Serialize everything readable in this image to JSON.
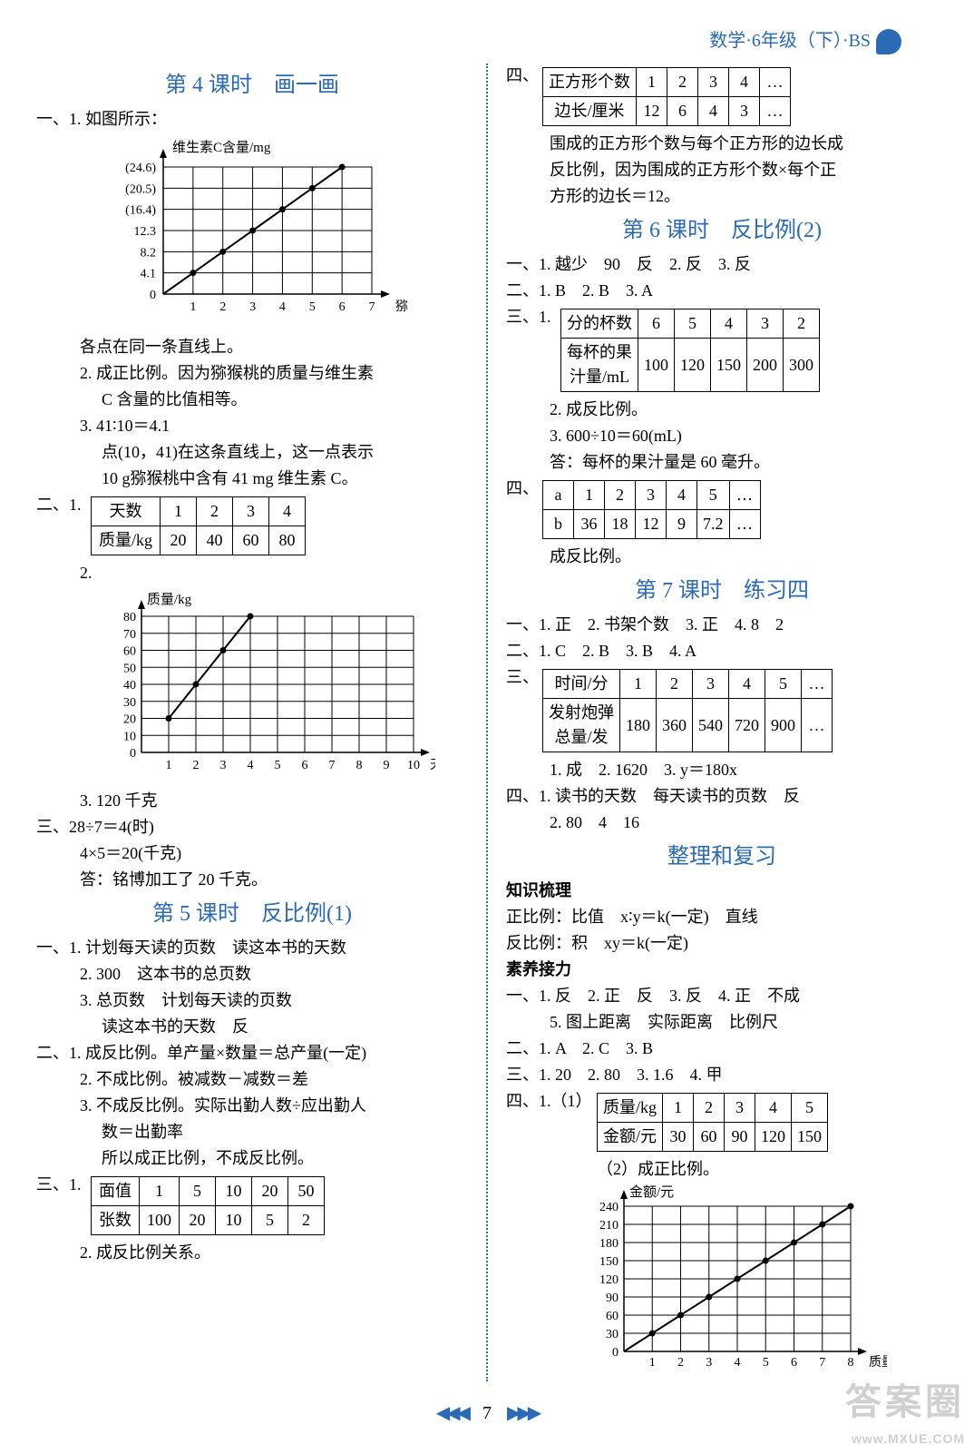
{
  "header": "数学·6年级（下）·BS",
  "page_number": "7",
  "left": {
    "lesson4_title": "第 4 课时　画一画",
    "l1": "一、1. 如图所示：",
    "chart1": {
      "type": "line",
      "title": "维生素C含量/mg",
      "x_label": "猕猴桃质量/g",
      "x_ticks": [
        1,
        2,
        3,
        4,
        5,
        6,
        7
      ],
      "y_ticks_labels": [
        "(24.6)",
        "(20.5)",
        "(16.4)",
        "12.3",
        "8.2",
        "4.1",
        "0"
      ],
      "y_values": [
        4.1,
        8.2,
        12.3,
        16.4,
        20.5,
        24.6
      ],
      "grid_color": "#000",
      "line_color": "#000",
      "bg": "#ffffff",
      "font_size": 14
    },
    "l2": "各点在同一条直线上。",
    "l3": "2. 成正比例。因为猕猴桃的质量与维生素",
    "l3b": "C 含量的比值相等。",
    "l4": "3. 41∶10＝4.1",
    "l4b": "点(10，41)在这条直线上，这一点表示",
    "l4c": "10 g猕猴桃中含有 41 mg 维生素 C。",
    "two_1_label": "二、1.",
    "table_days": {
      "headers": [
        "天数",
        "1",
        "2",
        "3",
        "4"
      ],
      "row2": [
        "质量/kg",
        "20",
        "40",
        "60",
        "80"
      ]
    },
    "two_2": "2.",
    "chart2": {
      "type": "line",
      "title": "质量/kg",
      "x_label": "天数",
      "x_ticks": [
        1,
        2,
        3,
        4,
        5,
        6,
        7,
        8,
        9,
        10
      ],
      "y_ticks": [
        10,
        20,
        30,
        40,
        50,
        60,
        70,
        80
      ],
      "points_x": [
        1,
        2,
        3,
        4
      ],
      "points_y": [
        20,
        40,
        60,
        80
      ],
      "grid_color": "#000",
      "line_color": "#000",
      "bg": "#ffffff",
      "font_size": 14
    },
    "two_3": "3. 120 千克",
    "three_a": "三、28÷7＝4(时)",
    "three_b": "4×5＝20(千克)",
    "three_c": "答：铭博加工了 20 千克。",
    "lesson5_title": "第 5 课时　反比例(1)",
    "f1": "一、1. 计划每天读的页数　读这本书的天数",
    "f2": "2. 300　这本书的总页数",
    "f3": "3. 总页数　计划每天读的页数",
    "f3b": "读这本书的天数　反",
    "g1": "二、1. 成反比例。单产量×数量＝总产量(一定)",
    "g2": "2. 不成比例。被减数－减数＝差",
    "g3": "3. 不成反比例。实际出勤人数÷应出勤人",
    "g3b": "数＝出勤率",
    "g3c": "所以成正比例，不成反比例。",
    "h_label": "三、1.",
    "table_money": {
      "headers": [
        "面值",
        "1",
        "5",
        "10",
        "20",
        "50"
      ],
      "row2": [
        "张数",
        "100",
        "20",
        "10",
        "5",
        "2"
      ]
    },
    "h2": "2. 成反比例关系。"
  },
  "right": {
    "four_label": "四、",
    "table_squares": {
      "headers": [
        "正方形个数",
        "1",
        "2",
        "3",
        "4",
        "…"
      ],
      "row2": [
        "边长/厘米",
        "12",
        "6",
        "4",
        "3",
        "…"
      ]
    },
    "r1": "围成的正方形个数与每个正方形的边长成",
    "r1b": "反比例，因为围成的正方形个数×每个正",
    "r1c": "方形的边长＝12。",
    "lesson6_title": "第 6 课时　反比例(2)",
    "a1": "一、1. 越少　90　反　2. 反　3. 反",
    "a2": "二、1. B　2. B　3. A",
    "a3_label": "三、1.",
    "table_cups": {
      "headers": [
        "分的杯数",
        "6",
        "5",
        "4",
        "3",
        "2"
      ],
      "row2": [
        "每杯的果\n汁量/mL",
        "100",
        "120",
        "150",
        "200",
        "300"
      ]
    },
    "a4": "2. 成反比例。",
    "a5": "3. 600÷10＝60(mL)",
    "a6": "答：每杯的果汁量是 60 毫升。",
    "b_label": "四、",
    "table_ab": {
      "headers": [
        "a",
        "1",
        "2",
        "3",
        "4",
        "5",
        "…"
      ],
      "row2": [
        "b",
        "36",
        "18",
        "12",
        "9",
        "7.2",
        "…"
      ]
    },
    "b1": "成反比例。",
    "lesson7_title": "第 7 课时　练习四",
    "c1": "一、1. 正　2. 书架个数　3. 正　4. 8　2",
    "c2": "二、1. C　2. B　3. B　4. A",
    "c3_label": "三、",
    "table_time": {
      "headers": [
        "时间/分",
        "1",
        "2",
        "3",
        "4",
        "5",
        "…"
      ],
      "row2": [
        "发射炮弹\n总量/发",
        "180",
        "360",
        "540",
        "720",
        "900",
        "…"
      ]
    },
    "c4": "1. 成　2. 1620　3. y＝180x",
    "c5": "四、1. 读书的天数　每天读书的页数　反",
    "c6": "2. 80　4　16",
    "review_title": "整理和复习",
    "k_title": "知识梳理",
    "k1": "正比例：比值　x∶y＝k(一定)　直线",
    "k2": "反比例：积　xy＝k(一定)",
    "s_title": "素养接力",
    "s1": "一、1. 反　2. 正　反　3. 反　4. 正　不成",
    "s1b": "5. 图上距离　实际距离　比例尺",
    "s2": "二、1. A　2. C　3. B",
    "s3": "三、1. 20　2. 80　3. 1.6　4. 甲",
    "s4_label": "四、1.（1）",
    "table_mass": {
      "headers": [
        "质量/kg",
        "1",
        "2",
        "3",
        "4",
        "5"
      ],
      "row2": [
        "金额/元",
        "30",
        "60",
        "90",
        "120",
        "150"
      ]
    },
    "s5": "（2）成正比例。",
    "chart3": {
      "type": "line",
      "title": "金额/元",
      "x_label": "质量/kg",
      "x_ticks": [
        1,
        2,
        3,
        4,
        5,
        6,
        7,
        8
      ],
      "y_ticks": [
        30,
        60,
        90,
        120,
        150,
        180,
        210,
        240
      ],
      "points_x": [
        1,
        2,
        3,
        4,
        5,
        6,
        7,
        8
      ],
      "points_y": [
        30,
        60,
        90,
        120,
        150,
        180,
        210,
        240
      ],
      "grid_color": "#000",
      "line_color": "#000",
      "bg": "#ffffff",
      "font_size": 14
    }
  },
  "watermark": "答案圈",
  "watermark_url": "www.MXUE.COM"
}
